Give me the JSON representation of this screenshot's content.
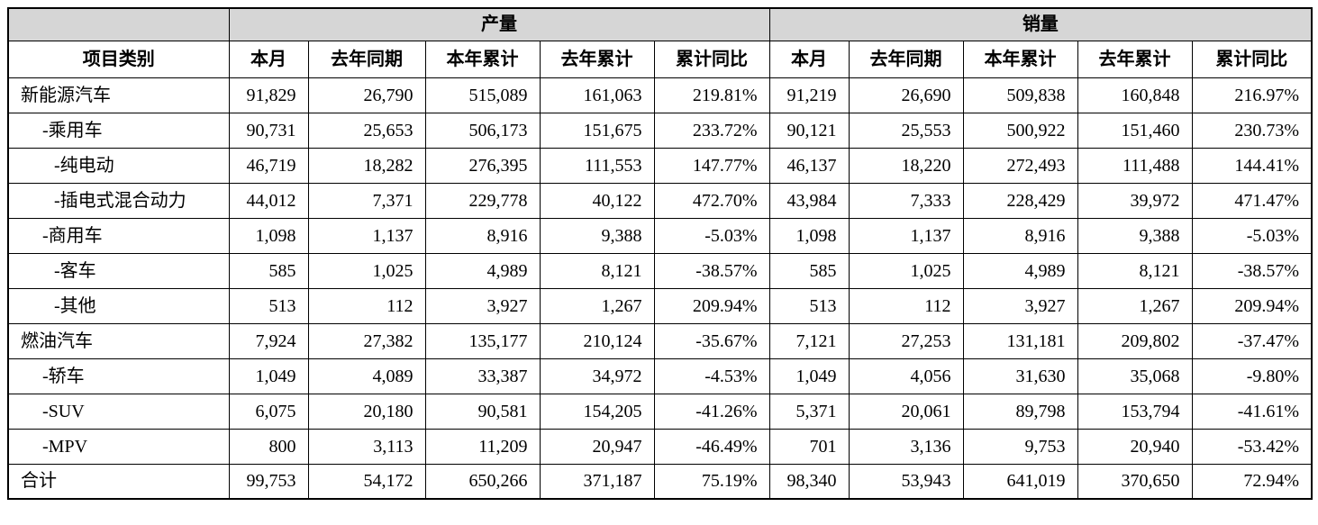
{
  "table": {
    "col1_header": "项目类别",
    "groups": [
      {
        "label": "产量"
      },
      {
        "label": "销量"
      }
    ],
    "sub_headers": [
      "本月",
      "去年同期",
      "本年累计",
      "去年累计",
      "累计同比"
    ],
    "colors": {
      "header_bg": "#d6d6d6",
      "border": "#000000",
      "text": "#000000",
      "background": "#ffffff"
    },
    "rows": [
      {
        "label": "新能源汽车",
        "indent": 0,
        "production": [
          "91,829",
          "26,790",
          "515,089",
          "161,063",
          "219.81%"
        ],
        "sales": [
          "91,219",
          "26,690",
          "509,838",
          "160,848",
          "216.97%"
        ]
      },
      {
        "label": "-乘用车",
        "indent": 1,
        "production": [
          "90,731",
          "25,653",
          "506,173",
          "151,675",
          "233.72%"
        ],
        "sales": [
          "90,121",
          "25,553",
          "500,922",
          "151,460",
          "230.73%"
        ]
      },
      {
        "label": "-纯电动",
        "indent": 2,
        "production": [
          "46,719",
          "18,282",
          "276,395",
          "111,553",
          "147.77%"
        ],
        "sales": [
          "46,137",
          "18,220",
          "272,493",
          "111,488",
          "144.41%"
        ]
      },
      {
        "label": "-插电式混合动力",
        "indent": 2,
        "production": [
          "44,012",
          "7,371",
          "229,778",
          "40,122",
          "472.70%"
        ],
        "sales": [
          "43,984",
          "7,333",
          "228,429",
          "39,972",
          "471.47%"
        ]
      },
      {
        "label": "-商用车",
        "indent": 1,
        "production": [
          "1,098",
          "1,137",
          "8,916",
          "9,388",
          "-5.03%"
        ],
        "sales": [
          "1,098",
          "1,137",
          "8,916",
          "9,388",
          "-5.03%"
        ]
      },
      {
        "label": "-客车",
        "indent": 2,
        "production": [
          "585",
          "1,025",
          "4,989",
          "8,121",
          "-38.57%"
        ],
        "sales": [
          "585",
          "1,025",
          "4,989",
          "8,121",
          "-38.57%"
        ]
      },
      {
        "label": "-其他",
        "indent": 2,
        "production": [
          "513",
          "112",
          "3,927",
          "1,267",
          "209.94%"
        ],
        "sales": [
          "513",
          "112",
          "3,927",
          "1,267",
          "209.94%"
        ]
      },
      {
        "label": "燃油汽车",
        "indent": 0,
        "production": [
          "7,924",
          "27,382",
          "135,177",
          "210,124",
          "-35.67%"
        ],
        "sales": [
          "7,121",
          "27,253",
          "131,181",
          "209,802",
          "-37.47%"
        ]
      },
      {
        "label": "-轿车",
        "indent": 1,
        "production": [
          "1,049",
          "4,089",
          "33,387",
          "34,972",
          "-4.53%"
        ],
        "sales": [
          "1,049",
          "4,056",
          "31,630",
          "35,068",
          "-9.80%"
        ]
      },
      {
        "label": "-SUV",
        "indent": 1,
        "production": [
          "6,075",
          "20,180",
          "90,581",
          "154,205",
          "-41.26%"
        ],
        "sales": [
          "5,371",
          "20,061",
          "89,798",
          "153,794",
          "-41.61%"
        ]
      },
      {
        "label": "-MPV",
        "indent": 1,
        "production": [
          "800",
          "3,113",
          "11,209",
          "20,947",
          "-46.49%"
        ],
        "sales": [
          "701",
          "3,136",
          "9,753",
          "20,940",
          "-53.42%"
        ]
      },
      {
        "label": "合计",
        "indent": 0,
        "production": [
          "99,753",
          "54,172",
          "650,266",
          "371,187",
          "75.19%"
        ],
        "sales": [
          "98,340",
          "53,943",
          "641,019",
          "370,650",
          "72.94%"
        ]
      }
    ]
  }
}
